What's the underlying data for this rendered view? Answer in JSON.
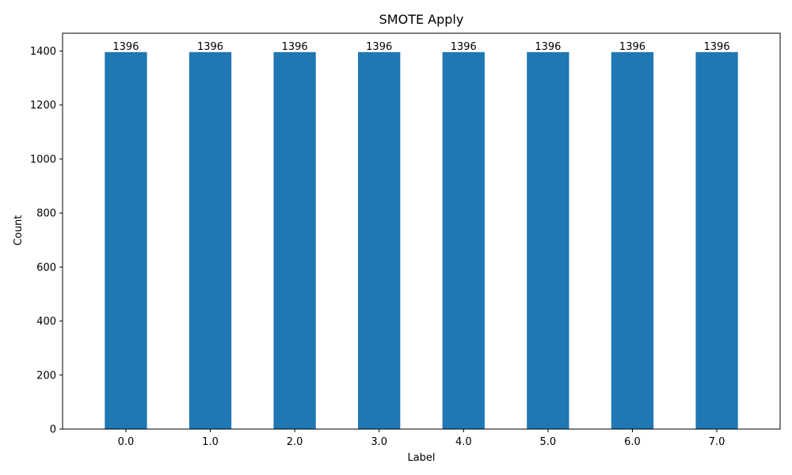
{
  "chart_data": {
    "type": "bar",
    "title": "SMOTE Apply",
    "xlabel": "Label",
    "ylabel": "Count",
    "categories": [
      "0.0",
      "1.0",
      "2.0",
      "3.0",
      "4.0",
      "5.0",
      "6.0",
      "7.0"
    ],
    "values": [
      1396,
      1396,
      1396,
      1396,
      1396,
      1396,
      1396,
      1396
    ],
    "data_labels": [
      "1396",
      "1396",
      "1396",
      "1396",
      "1396",
      "1396",
      "1396",
      "1396"
    ],
    "yticks": [
      0,
      200,
      400,
      600,
      800,
      1000,
      1200,
      1400
    ],
    "ylim": [
      0,
      1465.8
    ],
    "grid": false,
    "bar_color": "#1f77b4"
  }
}
